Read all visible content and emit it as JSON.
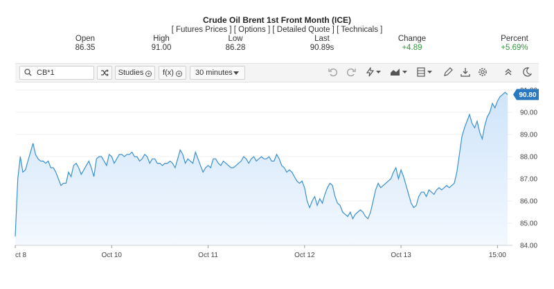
{
  "header": {
    "title": "Crude Oil Brent 1st Front Month (ICE)",
    "links": [
      "Futures Prices",
      "Options",
      "Detailed Quote",
      "Technicals"
    ]
  },
  "quote": {
    "open_label": "Open",
    "open_value": "86.35",
    "high_label": "High",
    "high_value": "91.00",
    "low_label": "Low",
    "low_value": "86.28",
    "last_label": "Last",
    "last_value": "90.89s",
    "change_label": "Change",
    "change_value": "+4.89",
    "percent_label": "Percent",
    "percent_value": "+5.69%"
  },
  "toolbar": {
    "search_value": "CB*1",
    "studies_label": "Studies",
    "fx_label": "f(x)",
    "interval_label": "30 minutes"
  },
  "colors": {
    "line": "#3a8fd0",
    "fill_top": "#cfe4fa",
    "fill_bottom": "#f3f8fe",
    "positive": "#2e9a3c",
    "badge": "#2a78c0"
  },
  "chart_data": {
    "type": "area",
    "ylim": [
      84,
      91
    ],
    "yticks": [
      "84.00",
      "85.00",
      "86.00",
      "87.00",
      "88.00",
      "89.00",
      "90.00",
      "91.00"
    ],
    "xticks": [
      {
        "label": "ct 8",
        "t": 0
      },
      {
        "label": "Oct 10",
        "t": 38
      },
      {
        "label": "Oct 11",
        "t": 76
      },
      {
        "label": "Oct 12",
        "t": 114
      },
      {
        "label": "Oct 13",
        "t": 152
      },
      {
        "label": "15:00",
        "t": 190
      }
    ],
    "last_value": "90.80",
    "series": [
      {
        "values": [
          84.4,
          87.0,
          88.0,
          87.3,
          87.4,
          87.8,
          88.2,
          88.6,
          88.1,
          87.9,
          87.8,
          87.8,
          87.7,
          87.8,
          87.5,
          87.5,
          87.3,
          87.0,
          86.7,
          86.8,
          86.8,
          87.3,
          87.1,
          87.6,
          87.7,
          87.5,
          87.2,
          87.4,
          87.6,
          87.8,
          87.5,
          87.1,
          87.9,
          88.0,
          88.0,
          87.8,
          87.6,
          88.1,
          88.0,
          87.7,
          87.9,
          88.1,
          88.1,
          88.0,
          88.1,
          88.1,
          88.2,
          88.0,
          88.0,
          87.8,
          87.9,
          88.1,
          88.0,
          87.7,
          87.9,
          87.9,
          87.7,
          87.7,
          87.6,
          87.7,
          87.7,
          87.8,
          87.7,
          87.5,
          87.9,
          88.3,
          88.1,
          87.7,
          87.9,
          87.8,
          87.7,
          88.2,
          87.9,
          87.6,
          87.3,
          87.5,
          87.6,
          87.5,
          87.9,
          87.9,
          87.7,
          87.6,
          87.8,
          87.7,
          87.6,
          87.5,
          87.5,
          87.6,
          87.7,
          87.8,
          88.0,
          87.9,
          87.7,
          87.9,
          88.0,
          87.8,
          87.9,
          88.0,
          87.9,
          87.9,
          88.0,
          87.8,
          87.8,
          88.1,
          87.9,
          87.6,
          87.5,
          87.3,
          87.4,
          87.3,
          87.1,
          86.9,
          86.8,
          86.9,
          86.6,
          86.0,
          85.7,
          86.0,
          86.2,
          85.8,
          86.1,
          85.9,
          86.3,
          86.6,
          86.8,
          86.7,
          86.2,
          85.9,
          85.8,
          85.5,
          85.4,
          85.3,
          85.5,
          85.2,
          85.4,
          85.5,
          85.6,
          85.5,
          85.3,
          85.2,
          85.5,
          86.0,
          86.5,
          86.8,
          86.6,
          86.7,
          86.8,
          86.9,
          87.0,
          87.3,
          87.5,
          87.0,
          87.4,
          87.1,
          86.7,
          86.3,
          85.9,
          85.7,
          85.8,
          86.2,
          86.4,
          86.4,
          86.2,
          86.5,
          86.4,
          86.3,
          86.5,
          86.6,
          86.5,
          86.6,
          86.7,
          86.6,
          86.7,
          86.8,
          87.3,
          88.1,
          88.9,
          89.3,
          89.6,
          89.9,
          89.5,
          89.3,
          89.6,
          89.1,
          88.8,
          89.4,
          89.8,
          90.0,
          90.4,
          90.2,
          90.5,
          90.7,
          90.8,
          90.9,
          90.8
        ]
      }
    ]
  }
}
